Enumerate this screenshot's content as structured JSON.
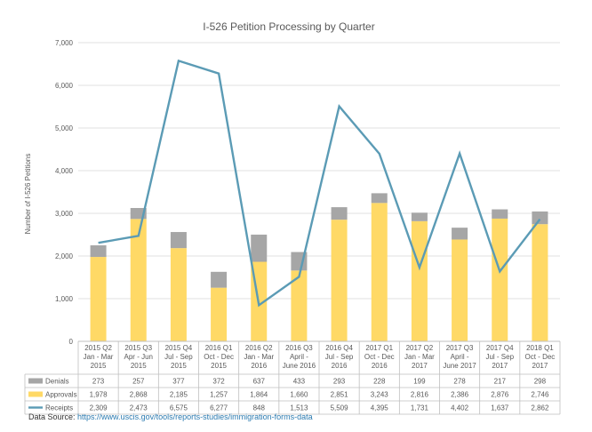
{
  "chart_data": {
    "type": "bar",
    "title": "I-526 Petition Processing by Quarter",
    "ylabel": "Number of I-526 Petitions",
    "xlabel": "",
    "ylim": [
      0,
      7000
    ],
    "yticks": [
      "0",
      "1,000",
      "2,000",
      "3,000",
      "4,000",
      "5,000",
      "6,000",
      "7,000"
    ],
    "ytick_values": [
      0,
      1000,
      2000,
      3000,
      4000,
      5000,
      6000,
      7000
    ],
    "grid": true,
    "categories": [
      [
        "2015 Q2",
        "Jan - Mar",
        "2015"
      ],
      [
        "2015 Q3",
        "Apr - Jun",
        "2015"
      ],
      [
        "2015 Q4",
        "Jul - Sep",
        "2015"
      ],
      [
        "2016 Q1",
        "Oct - Dec",
        "2015"
      ],
      [
        "2016 Q2",
        "Jan - Mar",
        "2016"
      ],
      [
        "2016 Q3",
        "April -",
        "June 2016"
      ],
      [
        "2016 Q4",
        "Jul - Sep",
        "2016"
      ],
      [
        "2017 Q1",
        "Oct - Dec",
        "2016"
      ],
      [
        "2017 Q2",
        "Jan - Mar",
        "2017"
      ],
      [
        "2017 Q3",
        "April -",
        "June 2017"
      ],
      [
        "2017 Q4",
        "Jul - Sep",
        "2017"
      ],
      [
        "2018 Q1",
        "Oct - Dec",
        "2017"
      ]
    ],
    "series": [
      {
        "name": "Denials",
        "kind": "bar-stack",
        "color": "#a6a6a6",
        "values": [
          273,
          257,
          377,
          372,
          637,
          433,
          293,
          228,
          199,
          278,
          217,
          298
        ],
        "labels": [
          "273",
          "257",
          "377",
          "372",
          "637",
          "433",
          "293",
          "228",
          "199",
          "278",
          "217",
          "298"
        ]
      },
      {
        "name": "Approvals",
        "kind": "bar",
        "color": "#ffd966",
        "values": [
          1978,
          2868,
          2185,
          1257,
          1864,
          1660,
          2851,
          3243,
          2816,
          2386,
          2876,
          2746
        ],
        "labels": [
          "1,978",
          "2,868",
          "2,185",
          "1,257",
          "1,864",
          "1,660",
          "2,851",
          "3,243",
          "2,816",
          "2,386",
          "2,876",
          "2,746"
        ]
      },
      {
        "name": "Receipts",
        "kind": "line",
        "color": "#5b9bb5",
        "values": [
          2309,
          2473,
          6575,
          6277,
          848,
          1513,
          5509,
          4395,
          1731,
          4402,
          1637,
          2862
        ],
        "labels": [
          "2,309",
          "2,473",
          "6,575",
          "6,277",
          "848",
          "1,513",
          "5,509",
          "4,395",
          "1,731",
          "4,402",
          "1,637",
          "2,862"
        ]
      }
    ]
  },
  "source": {
    "label": "Data Source:",
    "url": "https://www.uscis.gov/tools/reports-studies/immigration-forms-data"
  }
}
